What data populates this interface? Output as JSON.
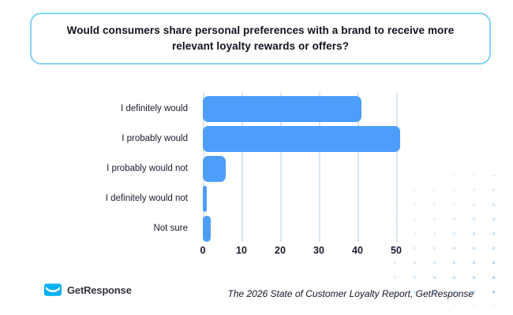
{
  "title": {
    "line1": "Would consumers share personal preferences with a brand to receive more",
    "line2": "relevant loyalty rewards or offers?"
  },
  "chart_data": {
    "type": "bar",
    "orientation": "horizontal",
    "title": "Would consumers share personal preferences with a brand to receive more relevant loyalty rewards or offers?",
    "categories": [
      "I definitely would",
      "I probably would",
      "I probably would not",
      "I definitely would not",
      "Not sure"
    ],
    "values": [
      41,
      51,
      6,
      1,
      2
    ],
    "unit": "percent",
    "xlim": [
      0,
      50
    ],
    "xticks": [
      0,
      10,
      20,
      30,
      40,
      50
    ],
    "grid": true,
    "legend": false,
    "bar_color": "#4d9efb"
  },
  "footer": {
    "brand": "GetResponse",
    "source": "The 2026 State of Customer Loyalty Report, GetResponse"
  },
  "colors": {
    "bar": "#4d9efb",
    "title_border": "#85d2f8",
    "gridline": "#dbe6f6",
    "dots": "#9ecdf2",
    "text": "#1b1b2f",
    "logo_cyan": "#00b1f2"
  }
}
